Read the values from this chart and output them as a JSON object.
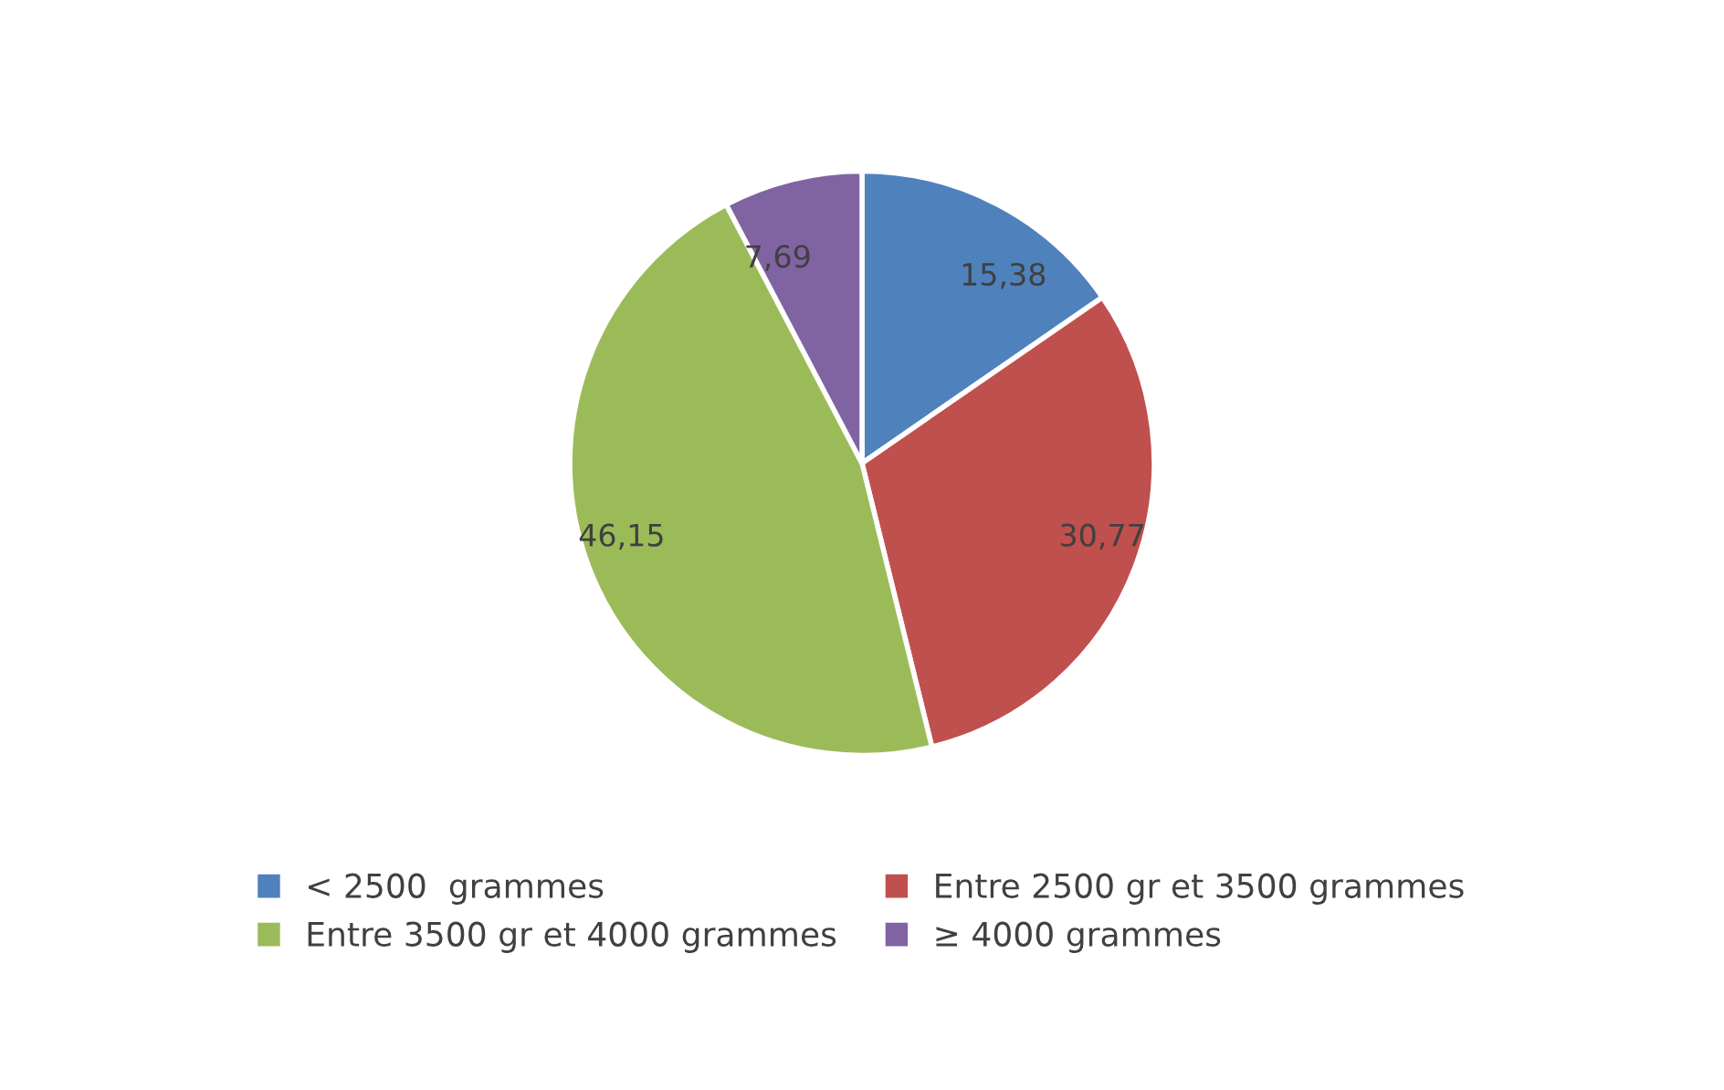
{
  "chart_data": {
    "type": "pie",
    "categories": [
      "< 2500  grammes",
      "Entre 2500 gr et 3500 grammes",
      "Entre 3500 gr et 4000 grammes",
      "≥ 4000 grammes"
    ],
    "values": [
      15.38,
      30.77,
      46.15,
      7.69
    ],
    "value_labels": [
      "15,38",
      "30,77",
      "46,15",
      "7,69"
    ],
    "colors": [
      "#4f81bd",
      "#c0504d",
      "#9bbb59",
      "#8064a2"
    ],
    "legend": "bottom"
  }
}
